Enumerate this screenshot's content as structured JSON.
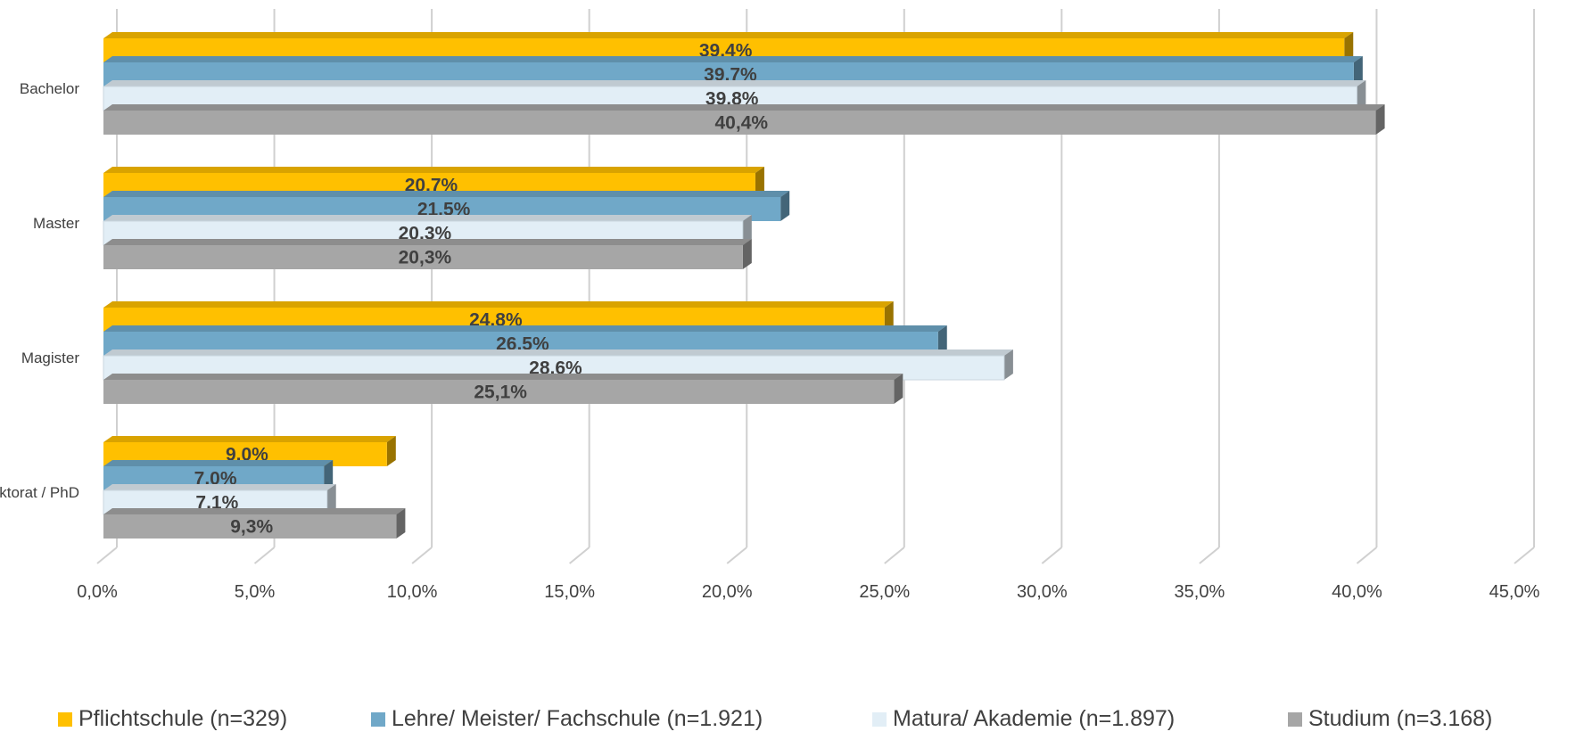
{
  "chart_data": {
    "type": "bar",
    "orientation": "horizontal",
    "three_d": true,
    "categories": [
      "Bachelor",
      "Master",
      "Magister",
      "Doktorat / PhD"
    ],
    "series": [
      {
        "name": "Pflichtschule (n=329)",
        "color": "#FFC000",
        "values": [
          39.4,
          20.7,
          24.8,
          9.0
        ],
        "labels": [
          "39,4%",
          "20,7%",
          "24,8%",
          "9,0%"
        ]
      },
      {
        "name": "Lehre/ Meister/ Fachschule (n=1.921)",
        "color": "#70A8C8",
        "values": [
          39.7,
          21.5,
          26.5,
          7.0
        ],
        "labels": [
          "39,7%",
          "21,5%",
          "26,5%",
          "7,0%"
        ]
      },
      {
        "name": "Matura/ Akademie (n=1.897)",
        "color": "#E2EEF6",
        "values": [
          39.8,
          20.3,
          28.6,
          7.1
        ],
        "labels": [
          "39,8%",
          "20,3%",
          "28,6%",
          "7,1%"
        ]
      },
      {
        "name": "Studium (n=3.168)",
        "color": "#A6A6A6",
        "values": [
          40.4,
          20.3,
          25.1,
          9.3
        ],
        "labels": [
          "40,4%",
          "20,3%",
          "25,1%",
          "9,3%"
        ]
      }
    ],
    "xlim": [
      0,
      45
    ],
    "xticks": [
      "0,0%",
      "5,0%",
      "10,0%",
      "15,0%",
      "20,0%",
      "25,0%",
      "30,0%",
      "35,0%",
      "40,0%",
      "45,0%"
    ],
    "grid": true,
    "legend_position": "bottom",
    "title": "",
    "xlabel": "",
    "ylabel": ""
  }
}
